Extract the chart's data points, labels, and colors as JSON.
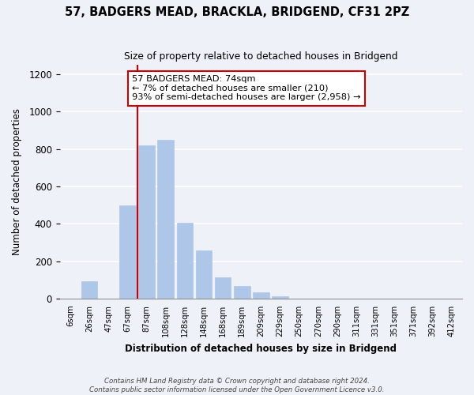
{
  "title": "57, BADGERS MEAD, BRACKLA, BRIDGEND, CF31 2PZ",
  "subtitle": "Size of property relative to detached houses in Bridgend",
  "xlabel": "Distribution of detached houses by size in Bridgend",
  "ylabel": "Number of detached properties",
  "bin_labels": [
    "6sqm",
    "26sqm",
    "47sqm",
    "67sqm",
    "87sqm",
    "108sqm",
    "128sqm",
    "148sqm",
    "168sqm",
    "189sqm",
    "209sqm",
    "229sqm",
    "250sqm",
    "270sqm",
    "290sqm",
    "311sqm",
    "331sqm",
    "351sqm",
    "371sqm",
    "392sqm",
    "412sqm"
  ],
  "bar_heights": [
    0,
    95,
    0,
    500,
    820,
    850,
    405,
    260,
    115,
    70,
    35,
    15,
    0,
    0,
    0,
    0,
    0,
    0,
    0,
    0,
    0
  ],
  "bar_color": "#aec6e8",
  "vline_x_index": 3.5,
  "vline_color": "#cc0000",
  "annotation_title": "57 BADGERS MEAD: 74sqm",
  "annotation_line1": "← 7% of detached houses are smaller (210)",
  "annotation_line2": "93% of semi-detached houses are larger (2,958) →",
  "annotation_box_color": "#ffffff",
  "annotation_box_edge": "#cc0000",
  "ylim": [
    0,
    1250
  ],
  "yticks": [
    0,
    200,
    400,
    600,
    800,
    1000,
    1200
  ],
  "footer_line1": "Contains HM Land Registry data © Crown copyright and database right 2024.",
  "footer_line2": "Contains public sector information licensed under the Open Government Licence v3.0.",
  "bg_color": "#eef2f8"
}
